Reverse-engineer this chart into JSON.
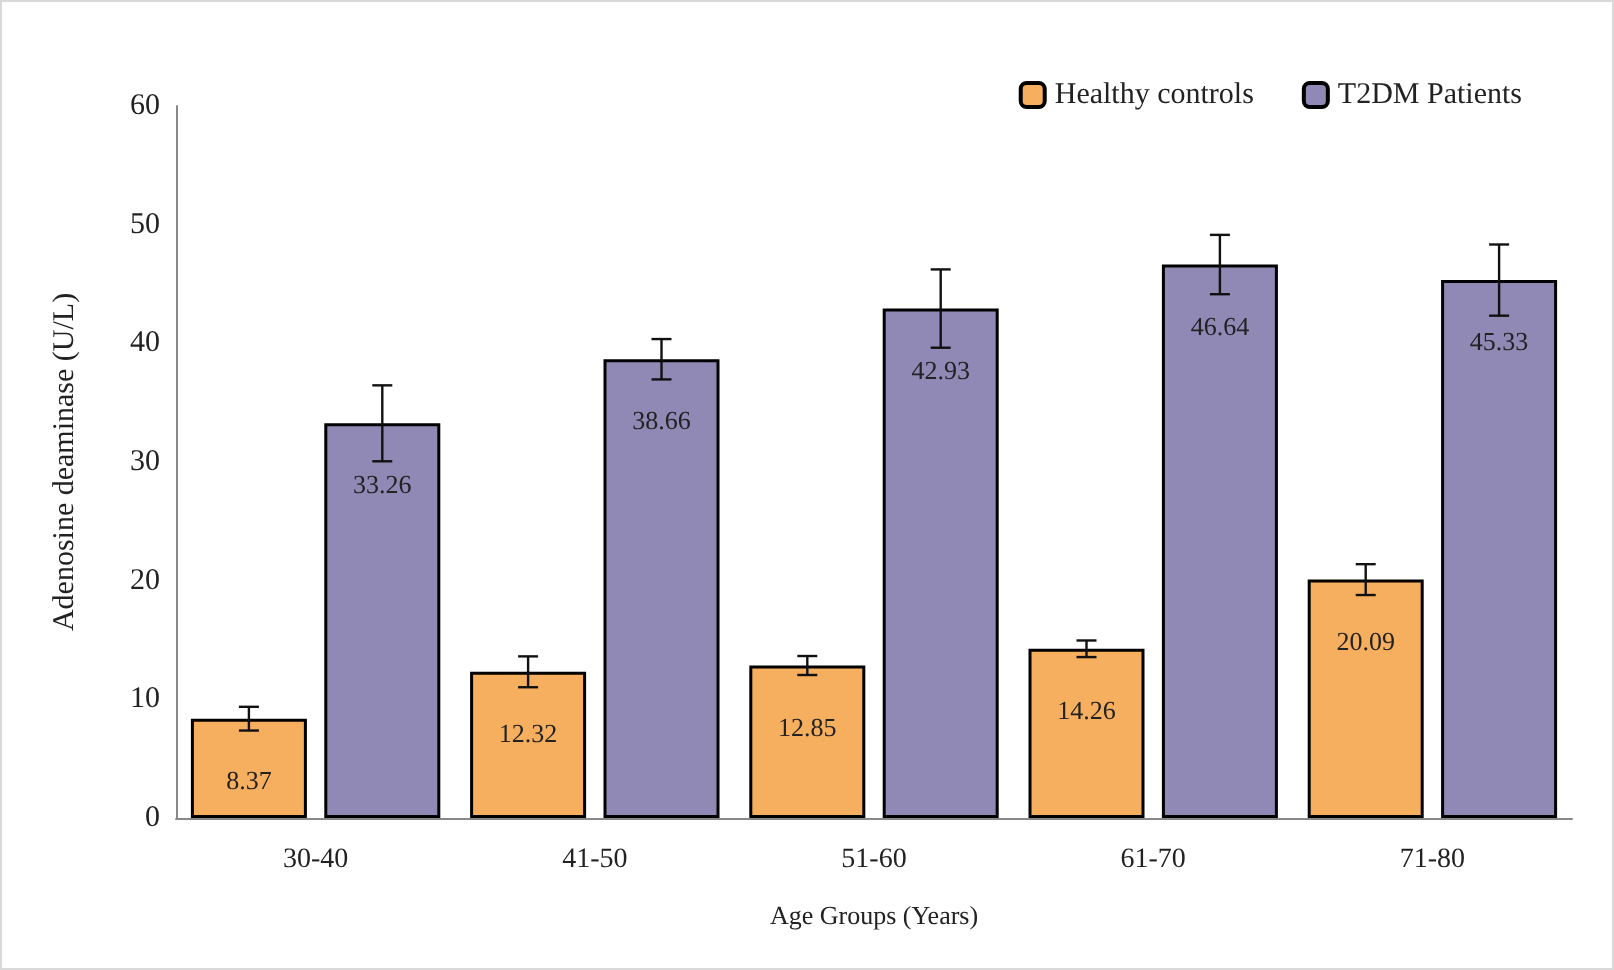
{
  "chart_data": {
    "type": "bar",
    "xlabel": "Age Groups (Years)",
    "ylabel": "Adenosine deaminase (U/L)",
    "categories": [
      "30-40",
      "41-50",
      "51-60",
      "61-70",
      "71-80"
    ],
    "series": [
      {
        "name": "Healthy controls",
        "color": "#f6ae5f",
        "values": [
          8.37,
          12.32,
          12.85,
          14.26,
          20.09
        ],
        "errors": [
          1.0,
          1.3,
          0.8,
          0.7,
          1.3
        ]
      },
      {
        "name": "T2DM Patients",
        "color": "#9088b5",
        "values": [
          33.26,
          38.66,
          42.93,
          46.64,
          45.33
        ],
        "errors": [
          3.2,
          1.7,
          3.3,
          2.5,
          3.0
        ]
      }
    ],
    "ylim": [
      0,
      60
    ],
    "yticks": [
      0,
      10,
      20,
      30,
      40,
      50,
      60
    ],
    "grid": false,
    "legend": "top right",
    "data_labels": true
  }
}
